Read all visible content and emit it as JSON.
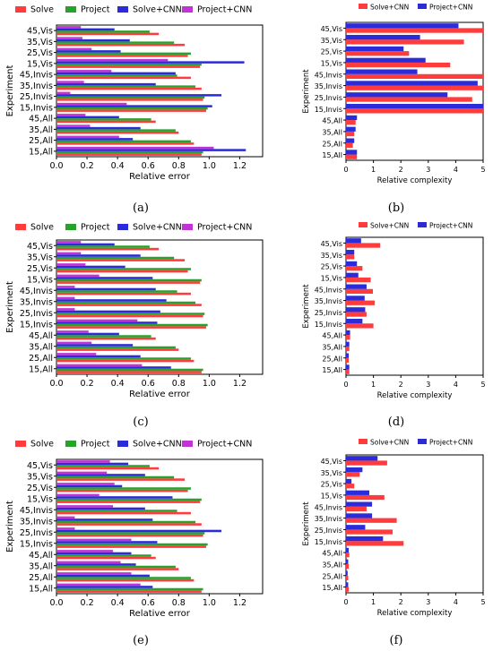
{
  "colors": {
    "solve": "#ff3b3b",
    "project": "#2ca02c",
    "solve_cnn": "#2b2bd9",
    "project_cnn": "#c233d6"
  },
  "chart_data": [
    {
      "panel": "(a)",
      "type": "bar",
      "orientation": "horizontal",
      "categories": [
        "15,All",
        "25,All",
        "35,All",
        "45,All",
        "15,Invis",
        "25,Invis",
        "35,Invis",
        "45,Invis",
        "15,Vis",
        "25,Vis",
        "35,Vis",
        "45,Vis"
      ],
      "series": [
        {
          "name": "Solve",
          "color": "solve",
          "values": [
            0.95,
            0.9,
            0.8,
            0.65,
            0.98,
            0.96,
            0.95,
            0.88,
            0.94,
            0.86,
            0.84,
            0.67
          ]
        },
        {
          "name": "Project",
          "color": "project",
          "values": [
            0.96,
            0.88,
            0.78,
            0.62,
            0.99,
            0.97,
            0.91,
            0.79,
            0.95,
            0.88,
            0.77,
            0.61
          ]
        },
        {
          "name": "Solve+CNN",
          "color": "solve_cnn",
          "values": [
            1.24,
            0.5,
            0.55,
            0.41,
            1.02,
            1.08,
            0.65,
            0.78,
            1.23,
            0.42,
            0.48,
            0.38
          ]
        },
        {
          "name": "Project+CNN",
          "color": "project_cnn",
          "values": [
            1.03,
            0.41,
            0.22,
            0.19,
            0.46,
            0.09,
            0.18,
            0.36,
            0.73,
            0.23,
            0.17,
            0.16
          ]
        }
      ],
      "xlabel": "Relative error",
      "ylabel": "Experiment",
      "xlim": [
        0,
        1.35
      ],
      "xticks": [
        "0.0",
        "0.2",
        "0.4",
        "0.6",
        "0.8",
        "1.0",
        "1.2"
      ],
      "legend": "top"
    },
    {
      "panel": "(b)",
      "type": "bar",
      "orientation": "horizontal",
      "categories": [
        "15,All",
        "25,All",
        "35,All",
        "45,All",
        "15,Invis",
        "25,Invis",
        "35,Invis",
        "45,Invis",
        "15,Vis",
        "25,Vis",
        "35,Vis",
        "45,Vis"
      ],
      "series": [
        {
          "name": "Solve+CNN",
          "color": "solve",
          "values": [
            0.4,
            0.25,
            0.3,
            0.35,
            5.0,
            4.6,
            5.0,
            5.0,
            3.8,
            2.3,
            4.3,
            5.0
          ]
        },
        {
          "name": "Project+CNN",
          "color": "solve_cnn",
          "values": [
            0.4,
            0.3,
            0.35,
            0.4,
            5.0,
            3.7,
            4.8,
            2.6,
            2.9,
            2.1,
            2.7,
            4.1
          ]
        }
      ],
      "xlabel": "Relative complexity",
      "ylabel": "Experiment",
      "xlim": [
        0,
        5
      ],
      "xticks": [
        "0",
        "1",
        "2",
        "3",
        "4",
        "5"
      ],
      "legend": "top"
    },
    {
      "panel": "(c)",
      "type": "bar",
      "orientation": "horizontal",
      "categories": [
        "15,All",
        "25,All",
        "35,All",
        "45,All",
        "15,Invis",
        "25,Invis",
        "35,Invis",
        "45,Invis",
        "15,Vis",
        "25,Vis",
        "35,Vis",
        "45,Vis"
      ],
      "series": [
        {
          "name": "Solve",
          "color": "solve",
          "values": [
            0.95,
            0.9,
            0.8,
            0.65,
            0.98,
            0.96,
            0.95,
            0.88,
            0.94,
            0.86,
            0.84,
            0.67
          ]
        },
        {
          "name": "Project",
          "color": "project",
          "values": [
            0.96,
            0.88,
            0.78,
            0.62,
            0.99,
            0.97,
            0.91,
            0.79,
            0.95,
            0.88,
            0.77,
            0.61
          ]
        },
        {
          "name": "Solve+CNN",
          "color": "solve_cnn",
          "values": [
            0.75,
            0.55,
            0.5,
            0.41,
            0.66,
            0.68,
            0.72,
            0.65,
            0.63,
            0.45,
            0.55,
            0.38
          ]
        },
        {
          "name": "Project+CNN",
          "color": "project_cnn",
          "values": [
            0.56,
            0.26,
            0.23,
            0.21,
            0.53,
            0.12,
            0.12,
            0.12,
            0.28,
            0.19,
            0.16,
            0.16
          ]
        }
      ],
      "xlabel": "Relative error",
      "ylabel": "Experiment",
      "xlim": [
        0,
        1.35
      ],
      "xticks": [
        "0.0",
        "0.2",
        "0.4",
        "0.6",
        "0.8",
        "1.0",
        "1.2"
      ],
      "legend": "top"
    },
    {
      "panel": "(d)",
      "type": "bar",
      "orientation": "horizontal",
      "categories": [
        "15,All",
        "25,All",
        "35,All",
        "45,All",
        "15,Invis",
        "25,Invis",
        "35,Invis",
        "45,Invis",
        "15,Vis",
        "25,Vis",
        "35,Vis",
        "45,Vis"
      ],
      "series": [
        {
          "name": "Solve+CNN",
          "color": "solve",
          "values": [
            0.12,
            0.1,
            0.12,
            0.15,
            1.0,
            0.75,
            1.05,
            0.98,
            0.9,
            0.6,
            0.3,
            1.25
          ]
        },
        {
          "name": "Project+CNN",
          "color": "solve_cnn",
          "values": [
            0.12,
            0.1,
            0.12,
            0.15,
            0.6,
            0.7,
            0.68,
            0.75,
            0.45,
            0.4,
            0.3,
            0.55
          ]
        }
      ],
      "xlabel": "Relative complexity",
      "ylabel": "Experiment",
      "xlim": [
        0,
        5
      ],
      "xticks": [
        "0",
        "1",
        "2",
        "3",
        "4",
        "5"
      ],
      "legend": "top"
    },
    {
      "panel": "(e)",
      "type": "bar",
      "orientation": "horizontal",
      "categories": [
        "15,All",
        "25,All",
        "35,All",
        "45,All",
        "15,Invis",
        "25,Invis",
        "35,Invis",
        "45,Invis",
        "15,Vis",
        "25,Vis",
        "35,Vis",
        "45,Vis"
      ],
      "series": [
        {
          "name": "Solve",
          "color": "solve",
          "values": [
            0.95,
            0.9,
            0.8,
            0.65,
            0.98,
            0.96,
            0.95,
            0.88,
            0.94,
            0.86,
            0.84,
            0.67
          ]
        },
        {
          "name": "Project",
          "color": "project",
          "values": [
            0.96,
            0.88,
            0.78,
            0.62,
            0.99,
            0.97,
            0.91,
            0.79,
            0.95,
            0.88,
            0.77,
            0.61
          ]
        },
        {
          "name": "Solve+CNN",
          "color": "solve_cnn",
          "values": [
            0.63,
            0.61,
            0.52,
            0.49,
            0.66,
            1.08,
            0.63,
            0.58,
            0.76,
            0.43,
            0.58,
            0.47
          ]
        },
        {
          "name": "Project+CNN",
          "color": "project_cnn",
          "values": [
            0.55,
            0.49,
            0.42,
            0.37,
            0.49,
            0.12,
            0.12,
            0.37,
            0.28,
            0.38,
            0.33,
            0.35
          ]
        }
      ],
      "xlabel": "Relative error",
      "ylabel": "Experiment",
      "xlim": [
        0,
        1.35
      ],
      "xticks": [
        "0.0",
        "0.2",
        "0.4",
        "0.6",
        "0.8",
        "1.0",
        "1.2"
      ],
      "legend": "top"
    },
    {
      "panel": "(f)",
      "type": "bar",
      "orientation": "horizontal",
      "categories": [
        "15,All",
        "25,All",
        "35,All",
        "45,All",
        "15,Invis",
        "25,Invis",
        "35,Invis",
        "45,Invis",
        "15,Vis",
        "25,Vis",
        "35,Vis",
        "45,Vis"
      ],
      "series": [
        {
          "name": "Solve+CNN",
          "color": "solve",
          "values": [
            0.1,
            0.08,
            0.1,
            0.12,
            2.1,
            1.7,
            1.85,
            0.75,
            1.4,
            0.3,
            0.5,
            1.5
          ]
        },
        {
          "name": "Project+CNN",
          "color": "solve_cnn",
          "values": [
            0.08,
            0.06,
            0.08,
            0.1,
            1.35,
            0.7,
            0.95,
            0.95,
            0.85,
            0.2,
            0.6,
            1.15
          ]
        }
      ],
      "xlabel": "Relative complexity",
      "ylabel": "Experiment",
      "xlim": [
        0,
        5
      ],
      "xticks": [
        "0",
        "1",
        "2",
        "3",
        "4",
        "5"
      ],
      "legend": "top"
    }
  ]
}
